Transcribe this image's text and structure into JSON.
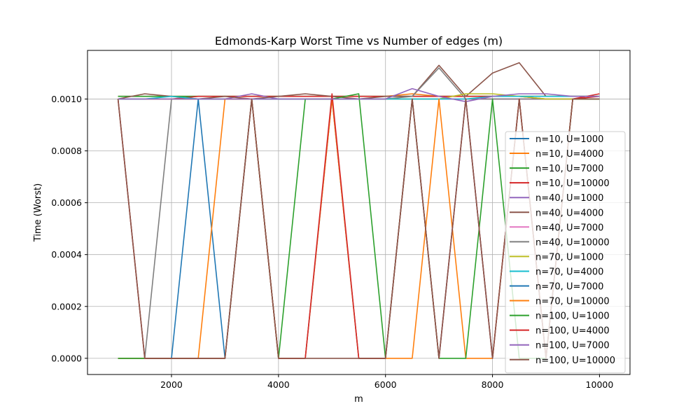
{
  "chart_data": {
    "type": "line",
    "title": "Edmonds-Karp Worst Time vs Number of edges (m)",
    "xlabel": "m",
    "ylabel": "Time (Worst)",
    "xlim": [
      430,
      10570
    ],
    "ylim": [
      -6.25e-05,
      0.0011875
    ],
    "xticks": [
      2000,
      4000,
      6000,
      8000,
      10000
    ],
    "xtick_labels": [
      "2000",
      "4000",
      "6000",
      "8000",
      "10000"
    ],
    "yticks": [
      0,
      0.0002,
      0.0004,
      0.0006,
      0.0008,
      0.001
    ],
    "ytick_labels": [
      "0.0000",
      "0.0002",
      "0.0004",
      "0.0006",
      "0.0008",
      "0.0010"
    ],
    "grid": true,
    "legend_position": "center-right",
    "x": [
      1000,
      1500,
      2000,
      2500,
      3000,
      3500,
      4000,
      4500,
      5000,
      5500,
      6000,
      6500,
      7000,
      7500,
      8000,
      8500,
      9000,
      9500,
      10000
    ],
    "series": [
      {
        "name": "n=10, U=1000",
        "color": "#1f77b4",
        "values": [
          0.00101,
          0.00101,
          0.00101,
          0.00101,
          0.00101,
          0.00101,
          0.00101,
          0.00101,
          0.00101,
          0.00101,
          0.00101,
          0.00101,
          0.00101,
          0.00101,
          0.00101,
          0.00101,
          0.00101,
          0.00101,
          0.00101
        ]
      },
      {
        "name": "n=10, U=4000",
        "color": "#ff7f0e",
        "values": [
          0.00101,
          0.00101,
          0.00101,
          0.00101,
          0.00101,
          0.00101,
          0.00101,
          0.00101,
          0.00101,
          0.00101,
          0.00101,
          0.00102,
          0.00101,
          0.00101,
          0.00101,
          0.00101,
          0.00101,
          0.00101,
          0.00101
        ]
      },
      {
        "name": "n=10, U=7000",
        "color": "#2ca02c",
        "values": [
          0.00101,
          0.00101,
          0.00101,
          0.00101,
          0.00101,
          0.00101,
          0.00101,
          0.00101,
          0.00101,
          0.00101,
          0.00101,
          0.00101,
          0.00101,
          0.00101,
          0.00101,
          0.00101,
          0.00101,
          0.00101,
          0.00101
        ]
      },
      {
        "name": "n=10, U=10000",
        "color": "#d62728",
        "values": [
          0.001,
          0.001,
          0.001,
          0.00101,
          0.00101,
          0.00101,
          0.00101,
          0.00101,
          0.00101,
          0.00101,
          0.00101,
          0.00101,
          0.00101,
          0.00101,
          0.00101,
          0.00101,
          0.001,
          0.001,
          0.00101
        ]
      },
      {
        "name": "n=40, U=1000",
        "color": "#9467bd",
        "values": [
          0.001,
          0.001,
          0.001,
          0.001,
          0.001,
          0.00102,
          0.001,
          0.001,
          0.001,
          0.001,
          0.001,
          0.001,
          0.001,
          0.001,
          0.001,
          0.001,
          0.001,
          0.001,
          0.001
        ]
      },
      {
        "name": "n=40, U=4000",
        "color": "#8c564b",
        "values": [
          0.001,
          0.00102,
          0.00101,
          0.001,
          0.00101,
          0.001,
          0.00101,
          0.00102,
          0.00101,
          0.001,
          0.00101,
          0.00101,
          0.00113,
          0.00101,
          0.0011,
          0.00114,
          0.00101,
          0.00101,
          0.00101
        ]
      },
      {
        "name": "n=40, U=7000",
        "color": "#e377c2",
        "values": [
          0.001,
          0.001,
          0.001,
          0.001,
          0.001,
          0.001,
          0.001,
          0.001,
          0.001,
          0.001,
          0.001,
          0.001,
          0.001,
          0.001,
          0.001,
          0.001,
          0.001,
          0.001,
          0.001
        ]
      },
      {
        "name": "n=40, U=10000",
        "color": "#7f7f7f",
        "values": [
          0.001,
          0,
          0.001,
          0.001,
          0.001,
          0.001,
          0.001,
          0.001,
          0.001,
          0.001,
          0.001,
          0.00101,
          0.00112,
          0.001,
          0.001,
          0.001,
          0.001,
          0.001,
          0.001
        ]
      },
      {
        "name": "n=70, U=1000",
        "color": "#bcbd22",
        "values": [
          0.001,
          0.001,
          0.001,
          0.001,
          0.001,
          0.001,
          0.001,
          0.001,
          0.001,
          0.001,
          0.001,
          0.001,
          0.001,
          0.00102,
          0.00102,
          0.00101,
          0.001,
          0.001,
          0.001
        ]
      },
      {
        "name": "n=70, U=4000",
        "color": "#17becf",
        "values": [
          0.001,
          0.001,
          0.00101,
          0.001,
          0.001,
          0.001,
          0.001,
          0.001,
          0.001,
          0.001,
          0.001,
          0.001,
          0.001,
          0.001,
          0.00101,
          0.00101,
          0.00101,
          0.00101,
          0.00101
        ]
      },
      {
        "name": "n=70, U=7000",
        "color": "#1f77b4",
        "values": [
          0,
          0,
          0,
          0.001,
          0,
          0.001,
          0,
          0,
          0.001,
          0,
          0,
          0.001,
          0,
          0.001,
          0,
          0.001,
          0,
          0.001,
          0.001
        ]
      },
      {
        "name": "n=70, U=10000",
        "color": "#ff7f0e",
        "values": [
          0,
          0,
          0,
          0,
          0.001,
          0.001,
          0,
          0,
          0.001,
          0,
          0,
          0,
          0.001,
          0,
          0,
          0.001,
          0,
          0.001,
          0.001
        ]
      },
      {
        "name": "n=100, U=1000",
        "color": "#2ca02c",
        "values": [
          0,
          0,
          0,
          0,
          0,
          0.001,
          0,
          0.001,
          0.001,
          0.00102,
          0,
          0.001,
          0,
          0,
          0.001,
          0,
          0,
          0.001,
          0.001
        ]
      },
      {
        "name": "n=100, U=4000",
        "color": "#d62728",
        "values": [
          0.001,
          0,
          0,
          0,
          0,
          0.001,
          0,
          0,
          0.00102,
          0,
          0,
          0.001,
          0,
          0.001,
          0,
          0.001,
          0,
          0.001,
          0.00102
        ]
      },
      {
        "name": "n=100, U=7000",
        "color": "#9467bd",
        "values": [
          0.001,
          0.001,
          0.001,
          0.001,
          0.001,
          0.001,
          0.001,
          0.001,
          0.001,
          0.001,
          0.001,
          0.00104,
          0.00101,
          0.00099,
          0.00101,
          0.00102,
          0.00102,
          0.00101,
          0.00101
        ]
      },
      {
        "name": "n=100, U=10000",
        "color": "#8c564b",
        "values": [
          0.001,
          0,
          0,
          0,
          0,
          0.001,
          0,
          0,
          0,
          0,
          0,
          0.001,
          0,
          0.001,
          0,
          0.001,
          0,
          0.001,
          0.001
        ]
      }
    ]
  }
}
